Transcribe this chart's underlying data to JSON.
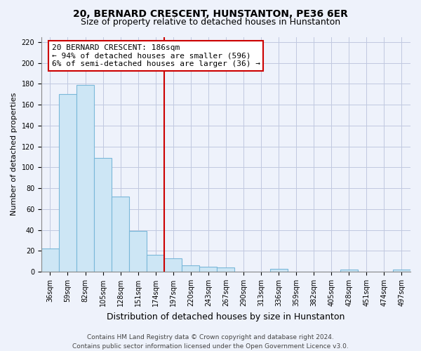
{
  "title": "20, BERNARD CRESCENT, HUNSTANTON, PE36 6ER",
  "subtitle": "Size of property relative to detached houses in Hunstanton",
  "xlabel": "Distribution of detached houses by size in Hunstanton",
  "ylabel": "Number of detached properties",
  "footnote1": "Contains HM Land Registry data © Crown copyright and database right 2024.",
  "footnote2": "Contains public sector information licensed under the Open Government Licence v3.0.",
  "bar_labels": [
    "36sqm",
    "59sqm",
    "82sqm",
    "105sqm",
    "128sqm",
    "151sqm",
    "174sqm",
    "197sqm",
    "220sqm",
    "243sqm",
    "267sqm",
    "290sqm",
    "313sqm",
    "336sqm",
    "359sqm",
    "382sqm",
    "405sqm",
    "428sqm",
    "451sqm",
    "474sqm",
    "497sqm"
  ],
  "bar_values": [
    22,
    170,
    179,
    109,
    72,
    39,
    16,
    13,
    6,
    5,
    4,
    0,
    0,
    3,
    0,
    0,
    0,
    2,
    0,
    0,
    2
  ],
  "bar_color": "#cde6f5",
  "bar_edge_color": "#7ab8d9",
  "marker_index": 7,
  "marker_line_color": "#cc0000",
  "annotation_line1": "20 BERNARD CRESCENT: 186sqm",
  "annotation_line2": "← 94% of detached houses are smaller (596)",
  "annotation_line3": "6% of semi-detached houses are larger (36) →",
  "annotation_box_facecolor": "#ffffff",
  "annotation_box_edgecolor": "#cc0000",
  "ylim": [
    0,
    225
  ],
  "yticks": [
    0,
    20,
    40,
    60,
    80,
    100,
    120,
    140,
    160,
    180,
    200,
    220
  ],
  "background_color": "#eef2fb",
  "plot_bg_color": "#eef2fb",
  "grid_color": "#c0c8e0",
  "title_fontsize": 10,
  "subtitle_fontsize": 9,
  "ylabel_fontsize": 8,
  "xlabel_fontsize": 9,
  "tick_fontsize": 7,
  "footnote_fontsize": 6.5
}
